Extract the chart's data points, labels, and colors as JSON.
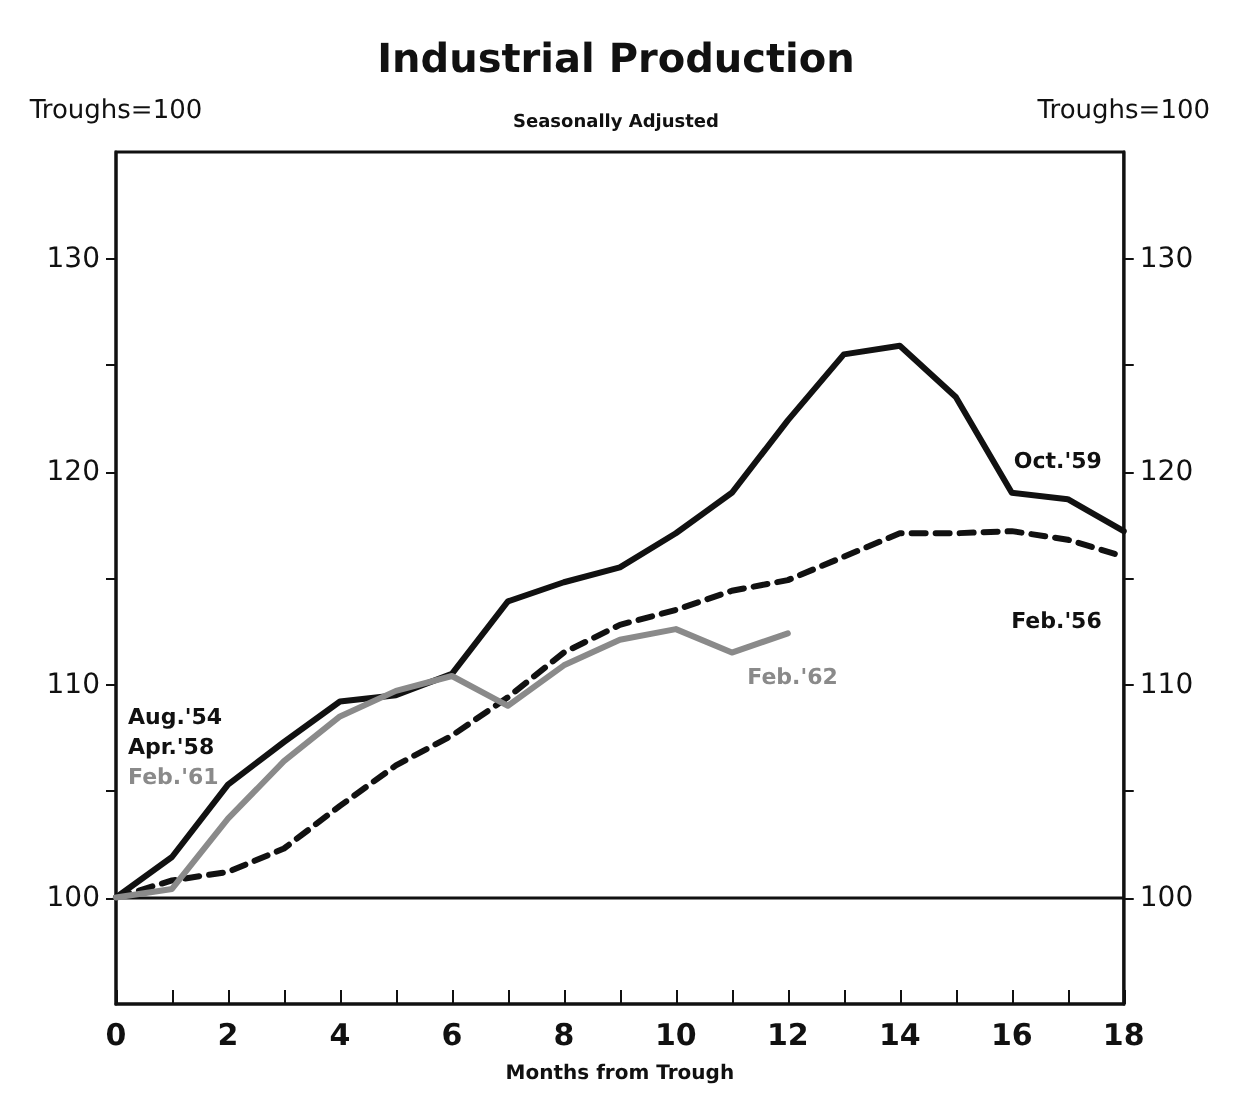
{
  "chart_data": {
    "type": "line",
    "title": "Industrial Production",
    "subtitle": "Seasonally Adjusted",
    "xlabel": "Months from Trough",
    "ylabel": "Troughs=100",
    "y2label": "Troughs=100",
    "x": [
      0,
      1,
      2,
      3,
      4,
      5,
      6,
      7,
      8,
      9,
      10,
      11,
      12,
      13,
      14,
      15,
      16,
      17,
      18
    ],
    "series": [
      {
        "name": "Oct.'59",
        "color": "#111111",
        "line_style": "solid",
        "values": [
          100,
          101.9,
          105.3,
          107.3,
          109.2,
          109.5,
          110.5,
          113.9,
          114.8,
          115.5,
          117.1,
          119.0,
          122.4,
          125.5,
          125.9,
          123.5,
          119.0,
          118.7,
          117.2
        ]
      },
      {
        "name": "Feb.'56",
        "color": "#111111",
        "line_style": "dashed",
        "values": [
          100,
          100.8,
          101.2,
          102.3,
          104.3,
          106.2,
          107.6,
          109.4,
          111.5,
          112.8,
          113.5,
          114.4,
          114.9,
          116.0,
          117.1,
          117.1,
          117.2,
          116.8,
          116.0
        ]
      },
      {
        "name": "Feb.'62",
        "color": "#8a8a8a",
        "line_style": "solid",
        "x": [
          0,
          1,
          2,
          3,
          4,
          5,
          6,
          7,
          8,
          9,
          10,
          11,
          12
        ],
        "values": [
          100,
          100.4,
          103.7,
          106.4,
          108.5,
          109.7,
          110.4,
          109.0,
          110.9,
          112.1,
          112.6,
          111.5,
          112.4
        ]
      }
    ],
    "annotations": [
      "Aug.'54",
      "Apr.'58",
      "Feb.'61"
    ],
    "ref_lines": [
      {
        "axis": "y",
        "value": 100,
        "color": "#111111"
      }
    ],
    "xlim": [
      0,
      18
    ],
    "xticks": [
      0,
      {
        "value": 1,
        "label": null
      },
      2,
      {
        "value": 3,
        "label": null
      },
      4,
      {
        "value": 5,
        "label": null
      },
      6,
      {
        "value": 7,
        "label": null
      },
      8,
      {
        "value": 9,
        "label": null
      },
      10,
      {
        "value": 11,
        "label": null
      },
      12,
      {
        "value": 13,
        "label": null
      },
      14,
      {
        "value": 15,
        "label": null
      },
      16,
      {
        "value": 17,
        "label": null
      },
      18
    ],
    "ylim": [
      95,
      135
    ],
    "yticks": [
      100,
      {
        "value": 105,
        "label": null
      },
      110,
      {
        "value": 115,
        "label": null
      },
      120,
      {
        "value": 125,
        "label": null
      },
      130
    ],
    "y2lim": [
      95,
      135
    ],
    "y2ticks": [
      100,
      {
        "value": 105,
        "label": null
      },
      110,
      {
        "value": 115,
        "label": null
      },
      120,
      {
        "value": 125,
        "label": null
      },
      130
    ],
    "grid": false,
    "legend": false,
    "marker": "none"
  }
}
